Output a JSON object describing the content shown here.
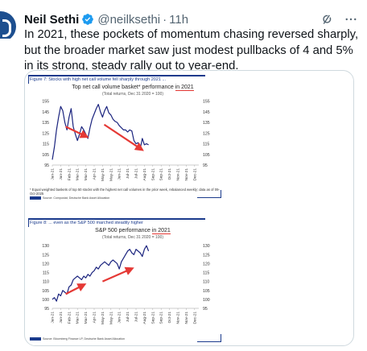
{
  "post": {
    "author_name": "Neil Sethi",
    "handle": "@neilksethi",
    "separator": "·",
    "time": "11h",
    "text": "In 2021, these pockets of momentum chasing reversed sharply, but the broader market saw just modest pullbacks of 4 and 5% in its strong, steady rally out to year-end.",
    "icons": {
      "verified": "verified-badge-icon",
      "grok": "grok-icon",
      "more": "more-icon"
    },
    "colors": {
      "verified": "#1d9bf0",
      "muted": "#536471",
      "text": "#0f1419",
      "avatar": "#1d4f8f"
    }
  },
  "figures": [
    {
      "label": "Figure 7: Stocks with high net call volume fell sharply through 2021 ...",
      "title_prefix": "Top net call volume basket* performance ",
      "title_highlight": "in 2021",
      "subtitle": "(Total returns, Dec 31 2020 = 100)",
      "note": "* Equal weighted baskets of top 50 stocks with the highest net call volumes in the prior week, rebalanced weekly; data as of 09-Oct-2025",
      "source": "Source: Compustat, Deutsche Bank Asset Allocation"
    },
    {
      "label": "Figure 8: ... even as the S&P 500 marched steadily higher",
      "title_prefix": "S&P 500 performance ",
      "title_highlight": "in 2021",
      "subtitle": "(Total returns, Dec 31 2020 = 100)",
      "source": "Source: Bloomberg Finance LP, Deutsche Bank Asset Allocation"
    }
  ],
  "chart_data": [
    {
      "type": "line",
      "title": "Top net call volume basket* performance in 2021",
      "subtitle": "(Total returns, Dec 31 2020 = 100)",
      "categories": [
        "Jan-21",
        "Jan-21",
        "Feb-21",
        "Mar-21",
        "Mar-21",
        "Apr-21",
        "May-21",
        "May-21",
        "Jun-21",
        "Jul-21",
        "Jul-21",
        "Aug-21",
        "Sep-21",
        "Sep-21",
        "Oct-21",
        "Nov-21",
        "Nov-21",
        "Dec-21"
      ],
      "yticks": [
        95,
        105,
        115,
        125,
        135,
        145,
        155
      ],
      "ylim": [
        95,
        157
      ],
      "x": [
        0,
        0.25,
        0.5,
        0.75,
        1,
        1.25,
        1.5,
        1.75,
        2,
        2.25,
        2.5,
        2.75,
        3,
        3.25,
        3.5,
        3.75,
        4,
        4.25,
        4.5,
        4.75,
        5,
        5.25,
        5.5,
        5.75,
        6,
        6.25,
        6.5,
        6.75,
        7,
        7.25,
        7.5,
        7.75,
        8,
        8.25,
        8.5,
        8.75,
        9,
        9.25,
        9.5,
        9.75,
        10,
        10.25,
        10.5,
        10.75,
        11,
        11.25,
        11.5
      ],
      "series": [
        {
          "values": [
            100,
            112,
            128,
            140,
            150,
            146,
            135,
            128,
            140,
            148,
            131,
            124,
            118,
            124,
            131,
            128,
            124,
            120,
            130,
            138,
            143,
            148,
            152,
            145,
            140,
            146,
            150,
            144,
            142,
            138,
            136,
            135,
            132,
            130,
            128,
            128,
            126,
            128,
            127,
            118,
            115,
            116,
            110,
            120,
            114,
            115,
            114
          ]
        }
      ],
      "annotations": [
        {
          "type": "arrow",
          "color": "#e53935",
          "from": [
            1.6,
            131
          ],
          "to": [
            4.0,
            122
          ]
        },
        {
          "type": "arrow",
          "color": "#e53935",
          "from": [
            6.2,
            133
          ],
          "to": [
            10.6,
            110
          ]
        }
      ],
      "line_color": "#1a237e"
    },
    {
      "type": "line",
      "title": "S&P 500 performance in 2021",
      "subtitle": "(Total returns, Dec 31 2020 = 100)",
      "categories": [
        "Jan-21",
        "Jan-21",
        "Feb-21",
        "Mar-21",
        "Mar-21",
        "Apr-21",
        "May-21",
        "May-21",
        "Jun-21",
        "Jul-21",
        "Jul-21",
        "Aug-21",
        "Sep-21",
        "Sep-21",
        "Oct-21",
        "Nov-21",
        "Nov-21",
        "Dec-21"
      ],
      "yticks": [
        95,
        100,
        105,
        110,
        115,
        120,
        125,
        130
      ],
      "ylim": [
        95,
        131
      ],
      "x": [
        0,
        0.25,
        0.5,
        0.75,
        1,
        1.25,
        1.5,
        1.75,
        2,
        2.25,
        2.5,
        2.75,
        3,
        3.25,
        3.5,
        3.75,
        4,
        4.25,
        4.5,
        4.75,
        5,
        5.25,
        5.5,
        5.75,
        6,
        6.25,
        6.5,
        6.75,
        7,
        7.25,
        7.5,
        7.75,
        8,
        8.25,
        8.5,
        8.75,
        9,
        9.25,
        9.5,
        9.75,
        10,
        10.25,
        10.5,
        10.75,
        11,
        11.25,
        11.5
      ],
      "series": [
        {
          "values": [
            100,
            101,
            99,
            103,
            102,
            105,
            104,
            103,
            107,
            108,
            111,
            112,
            113,
            112,
            111,
            113,
            112,
            114,
            113,
            115,
            116,
            118,
            117,
            119,
            120,
            121,
            120,
            119,
            121,
            122,
            121,
            120,
            117,
            121,
            123,
            125,
            127,
            128,
            126,
            125,
            128,
            127,
            126,
            124,
            128,
            130,
            127
          ]
        }
      ],
      "annotations": [
        {
          "type": "arrow",
          "color": "#e53935",
          "from": [
            1.6,
            103
          ],
          "to": [
            3.7,
            108
          ]
        },
        {
          "type": "arrow",
          "color": "#e53935",
          "from": [
            6.0,
            110
          ],
          "to": [
            9.4,
            117
          ]
        }
      ],
      "line_color": "#1a237e"
    }
  ]
}
